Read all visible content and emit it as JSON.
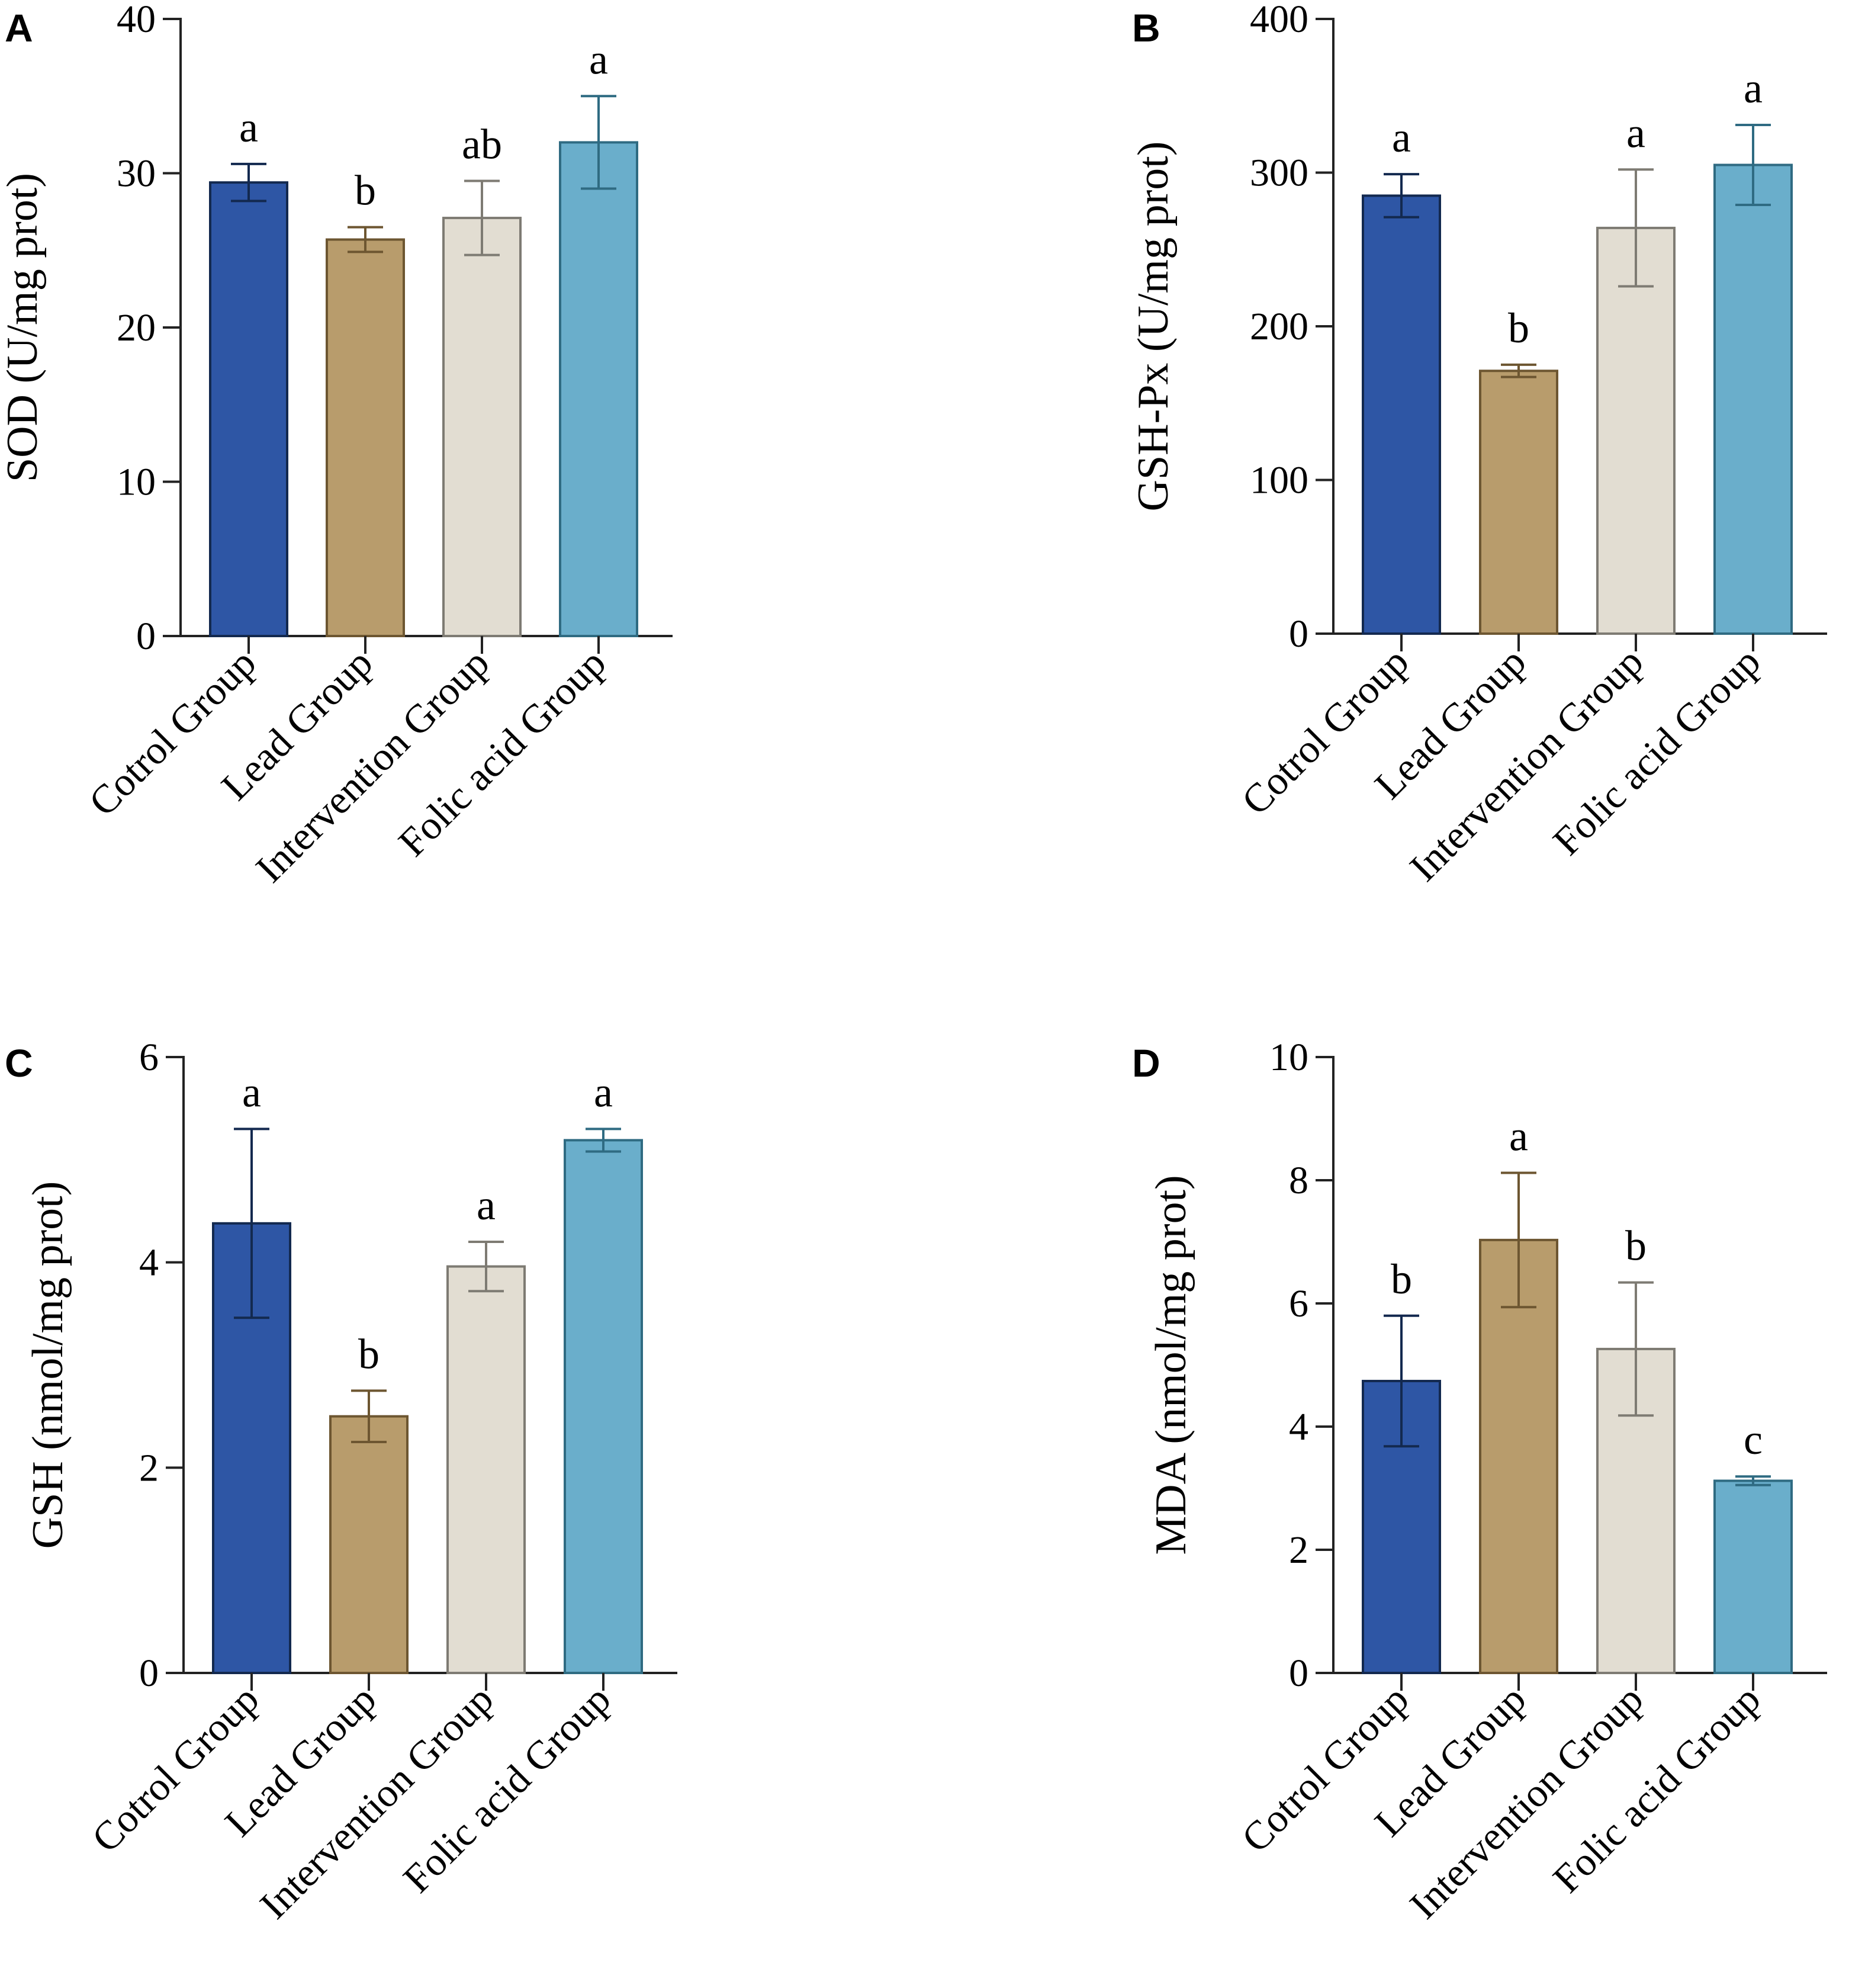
{
  "chart_data": [
    {
      "panel": "A",
      "type": "bar",
      "ylabel": "SOD (U/mg prot)",
      "xlabel": "",
      "ylim": [
        0,
        40
      ],
      "yticks": [
        0,
        10,
        20,
        30,
        40
      ],
      "categories": [
        "Cotrol Group",
        "Lead Group",
        "Intervention Group",
        "Folic acid Group"
      ],
      "values": [
        29.4,
        25.7,
        27.1,
        32.0
      ],
      "errors": [
        1.2,
        0.8,
        2.4,
        3.0
      ],
      "significance": [
        "a",
        "b",
        "ab",
        "a"
      ]
    },
    {
      "panel": "B",
      "type": "bar",
      "ylabel": "GSH-Px (U/mg prot)",
      "xlabel": "",
      "ylim": [
        0,
        400
      ],
      "yticks": [
        0,
        100,
        200,
        300,
        400
      ],
      "categories": [
        "Cotrol Group",
        "Lead Group",
        "Intervention Group",
        "Folic acid Group"
      ],
      "values": [
        285,
        171,
        264,
        305
      ],
      "errors": [
        14,
        4,
        38,
        26
      ],
      "significance": [
        "a",
        "b",
        "a",
        "a"
      ]
    },
    {
      "panel": "C",
      "type": "bar",
      "ylabel": "GSH (nmol/mg prot)",
      "xlabel": "",
      "ylim": [
        0,
        6
      ],
      "yticks": [
        0,
        2,
        4,
        6
      ],
      "categories": [
        "Cotrol Group",
        "Lead Group",
        "Intervention Group",
        "Folic acid Group"
      ],
      "values": [
        4.38,
        2.5,
        3.96,
        5.19
      ],
      "errors": [
        0.92,
        0.25,
        0.24,
        0.11
      ],
      "significance": [
        "a",
        "b",
        "a",
        "a"
      ]
    },
    {
      "panel": "D",
      "type": "bar",
      "ylabel": "MDA (nmol/mg prot)",
      "xlabel": "",
      "ylim": [
        0,
        10
      ],
      "yticks": [
        0,
        2,
        4,
        6,
        8,
        10
      ],
      "categories": [
        "Cotrol Group",
        "Lead Group",
        "Intervention Group",
        "Folic acid Group"
      ],
      "values": [
        4.74,
        7.03,
        5.26,
        3.12
      ],
      "errors": [
        1.06,
        1.09,
        1.08,
        0.07
      ],
      "significance": [
        "b",
        "a",
        "b",
        "c"
      ]
    }
  ],
  "colors": {
    "fills": [
      "#2e56a5",
      "#b89c6c",
      "#e2ddd2",
      "#6aaecb"
    ],
    "strokes": [
      "#13294f",
      "#6d5631",
      "#7e7b73",
      "#2f6b82"
    ]
  }
}
